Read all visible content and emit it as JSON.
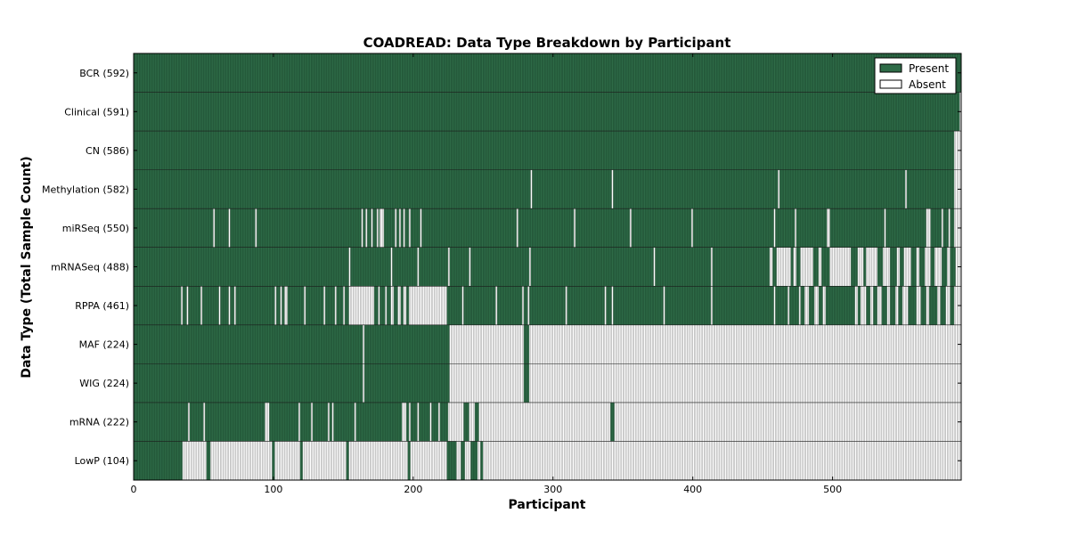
{
  "chart_data": {
    "type": "heatmap",
    "title": "COADREAD: Data Type Breakdown by Participant",
    "xlabel": "Participant",
    "ylabel": "Data Type (Total Sample Count)",
    "xlim": [
      0,
      592
    ],
    "xticks": [
      0,
      100,
      200,
      300,
      400,
      500
    ],
    "legend": {
      "placement": "top-right",
      "entries": [
        {
          "label": "Present",
          "color": "#2e6b47"
        },
        {
          "label": "Absent",
          "color": "#ffffff"
        }
      ]
    },
    "colors": {
      "present": "#2e6b47",
      "absent": "#ffffff",
      "present_stripe": "#1d4a30",
      "absent_stripe": "#777777"
    },
    "n_participants": 592,
    "rows": [
      {
        "label": "BCR (592)",
        "count": 592,
        "absent_ranges": []
      },
      {
        "label": "Clinical (591)",
        "count": 591,
        "absent_ranges": [
          [
            591,
            592
          ]
        ]
      },
      {
        "label": "CN (586)",
        "count": 586,
        "absent_ranges": [
          [
            587,
            592
          ]
        ]
      },
      {
        "label": "Methylation (582)",
        "count": 582,
        "absent_ranges": [
          [
            284,
            285
          ],
          [
            342,
            343
          ],
          [
            461,
            462
          ],
          [
            552,
            553
          ],
          [
            587,
            592
          ]
        ]
      },
      {
        "label": "miRSeq (550)",
        "count": 550,
        "absent_ranges": [
          [
            57,
            58
          ],
          [
            68,
            69
          ],
          [
            87,
            88
          ],
          [
            163,
            164
          ],
          [
            166,
            167
          ],
          [
            170,
            171
          ],
          [
            174,
            175
          ],
          [
            176,
            179
          ],
          [
            187,
            188
          ],
          [
            190,
            191
          ],
          [
            193,
            194
          ],
          [
            197,
            198
          ],
          [
            205,
            206
          ],
          [
            274,
            275
          ],
          [
            315,
            316
          ],
          [
            355,
            356
          ],
          [
            399,
            400
          ],
          [
            458,
            459
          ],
          [
            473,
            474
          ],
          [
            496,
            498
          ],
          [
            537,
            538
          ],
          [
            567,
            570
          ],
          [
            578,
            579
          ],
          [
            583,
            584
          ],
          [
            587,
            592
          ]
        ]
      },
      {
        "label": "mRNASeq (488)",
        "count": 488,
        "absent_ranges": [
          [
            154,
            155
          ],
          [
            184,
            185
          ],
          [
            203,
            204
          ],
          [
            225,
            226
          ],
          [
            240,
            241
          ],
          [
            283,
            284
          ],
          [
            372,
            373
          ],
          [
            413,
            414
          ],
          [
            455,
            457
          ],
          [
            460,
            470
          ],
          [
            472,
            474
          ],
          [
            477,
            486
          ],
          [
            490,
            492
          ],
          [
            498,
            513
          ],
          [
            518,
            522
          ],
          [
            524,
            532
          ],
          [
            536,
            541
          ],
          [
            546,
            548
          ],
          [
            551,
            556
          ],
          [
            560,
            562
          ],
          [
            566,
            570
          ],
          [
            573,
            578
          ],
          [
            582,
            584
          ],
          [
            588,
            592
          ]
        ]
      },
      {
        "label": "RPPA (461)",
        "count": 461,
        "absent_ranges": [
          [
            34,
            35
          ],
          [
            38,
            39
          ],
          [
            48,
            49
          ],
          [
            61,
            62
          ],
          [
            68,
            69
          ],
          [
            72,
            73
          ],
          [
            101,
            102
          ],
          [
            105,
            106
          ],
          [
            108,
            110
          ],
          [
            122,
            123
          ],
          [
            136,
            137
          ],
          [
            144,
            145
          ],
          [
            150,
            151
          ],
          [
            154,
            172
          ],
          [
            175,
            176
          ],
          [
            180,
            181
          ],
          [
            184,
            186
          ],
          [
            189,
            191
          ],
          [
            193,
            195
          ],
          [
            197,
            224
          ],
          [
            235,
            236
          ],
          [
            259,
            260
          ],
          [
            278,
            279
          ],
          [
            282,
            283
          ],
          [
            309,
            310
          ],
          [
            337,
            338
          ],
          [
            342,
            343
          ],
          [
            379,
            380
          ],
          [
            413,
            414
          ],
          [
            458,
            459
          ],
          [
            468,
            469
          ],
          [
            476,
            477
          ],
          [
            480,
            483
          ],
          [
            487,
            490
          ],
          [
            493,
            495
          ],
          [
            516,
            518
          ],
          [
            520,
            524
          ],
          [
            527,
            529
          ],
          [
            532,
            535
          ],
          [
            539,
            541
          ],
          [
            545,
            547
          ],
          [
            550,
            554
          ],
          [
            560,
            563
          ],
          [
            567,
            569
          ],
          [
            575,
            577
          ],
          [
            581,
            584
          ],
          [
            587,
            592
          ]
        ]
      },
      {
        "label": "MAF (224)",
        "count": 224,
        "absent_ranges": [
          [
            164,
            165
          ],
          [
            226,
            279
          ],
          [
            283,
            592
          ]
        ]
      },
      {
        "label": "WIG (224)",
        "count": 224,
        "absent_ranges": [
          [
            164,
            165
          ],
          [
            226,
            279
          ],
          [
            283,
            592
          ]
        ]
      },
      {
        "label": "mRNA (222)",
        "count": 222,
        "absent_ranges": [
          [
            39,
            40
          ],
          [
            50,
            51
          ],
          [
            94,
            97
          ],
          [
            118,
            119
          ],
          [
            127,
            128
          ],
          [
            139,
            140
          ],
          [
            142,
            143
          ],
          [
            158,
            159
          ],
          [
            192,
            195
          ],
          [
            197,
            198
          ],
          [
            203,
            204
          ],
          [
            212,
            213
          ],
          [
            218,
            219
          ],
          [
            225,
            236
          ],
          [
            240,
            244
          ],
          [
            247,
            341
          ],
          [
            344,
            592
          ]
        ]
      },
      {
        "label": "LowP (104)",
        "count": 104,
        "absent_ranges": [
          [
            35,
            52
          ],
          [
            55,
            99
          ],
          [
            101,
            119
          ],
          [
            121,
            152
          ],
          [
            154,
            196
          ],
          [
            198,
            224
          ],
          [
            231,
            234
          ],
          [
            237,
            241
          ],
          [
            246,
            248
          ],
          [
            250,
            592
          ]
        ]
      }
    ]
  }
}
